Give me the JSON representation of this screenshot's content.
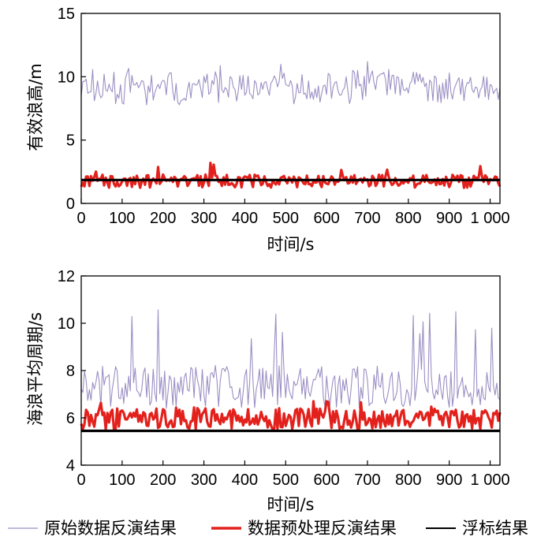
{
  "chart_data": [
    {
      "type": "line",
      "xlabel": "时间/s",
      "ylabel": "有效浪高/m",
      "xlim": [
        0,
        1024
      ],
      "ylim": [
        0,
        15
      ],
      "xticks": [
        0,
        100,
        200,
        300,
        400,
        500,
        600,
        700,
        800,
        900,
        1000
      ],
      "xtick_labels": [
        "0",
        "100",
        "200",
        "300",
        "400",
        "500",
        "600",
        "700",
        "800",
        "900",
        "1 000"
      ],
      "yticks": [
        0,
        5,
        10,
        15
      ],
      "ytick_labels": [
        "0",
        "5",
        "10",
        "15"
      ],
      "grid": false,
      "series": [
        {
          "name": "原始数据反演结果",
          "color": "#9b8fc4",
          "mean": 9.2,
          "min": 7.0,
          "max": 11.2,
          "x_step": 4
        },
        {
          "name": "数据预处理反演结果",
          "color": "#e3211c",
          "mean": 1.8,
          "min": 1.0,
          "max": 3.2,
          "x_step": 4
        },
        {
          "name": "浮标结果",
          "color": "#000000",
          "x": [
            0,
            1024
          ],
          "values": [
            1.85,
            1.85
          ]
        }
      ]
    },
    {
      "type": "line",
      "xlabel": "时间/s",
      "ylabel": "海浪平均周期/s",
      "xlim": [
        0,
        1024
      ],
      "ylim": [
        4,
        12
      ],
      "xticks": [
        0,
        100,
        200,
        300,
        400,
        500,
        600,
        700,
        800,
        900,
        1000
      ],
      "xtick_labels": [
        "0",
        "100",
        "200",
        "300",
        "400",
        "500",
        "600",
        "700",
        "800",
        "900",
        "1 000"
      ],
      "yticks": [
        4,
        6,
        8,
        10,
        12
      ],
      "ytick_labels": [
        "4",
        "6",
        "8",
        "10",
        "12"
      ],
      "grid": false,
      "series": [
        {
          "name": "原始数据反演结果",
          "color": "#9b8fc4",
          "mean": 7.4,
          "min": 6.0,
          "max": 10.8,
          "x_step": 4
        },
        {
          "name": "数据预处理反演结果",
          "color": "#e3211c",
          "mean": 6.0,
          "min": 5.2,
          "max": 6.7,
          "x_step": 4
        },
        {
          "name": "浮标结果",
          "color": "#000000",
          "x": [
            0,
            1024
          ],
          "values": [
            5.45,
            5.45
          ]
        }
      ]
    }
  ],
  "legend": {
    "placement": "bottom",
    "items": [
      {
        "label": "原始数据反演结果",
        "color": "#9b8fc4",
        "style": "thin"
      },
      {
        "label": "数据预处理反演结果",
        "color": "#e3211c",
        "style": "thick"
      },
      {
        "label": "浮标结果",
        "color": "#000000",
        "style": "medium"
      }
    ]
  }
}
